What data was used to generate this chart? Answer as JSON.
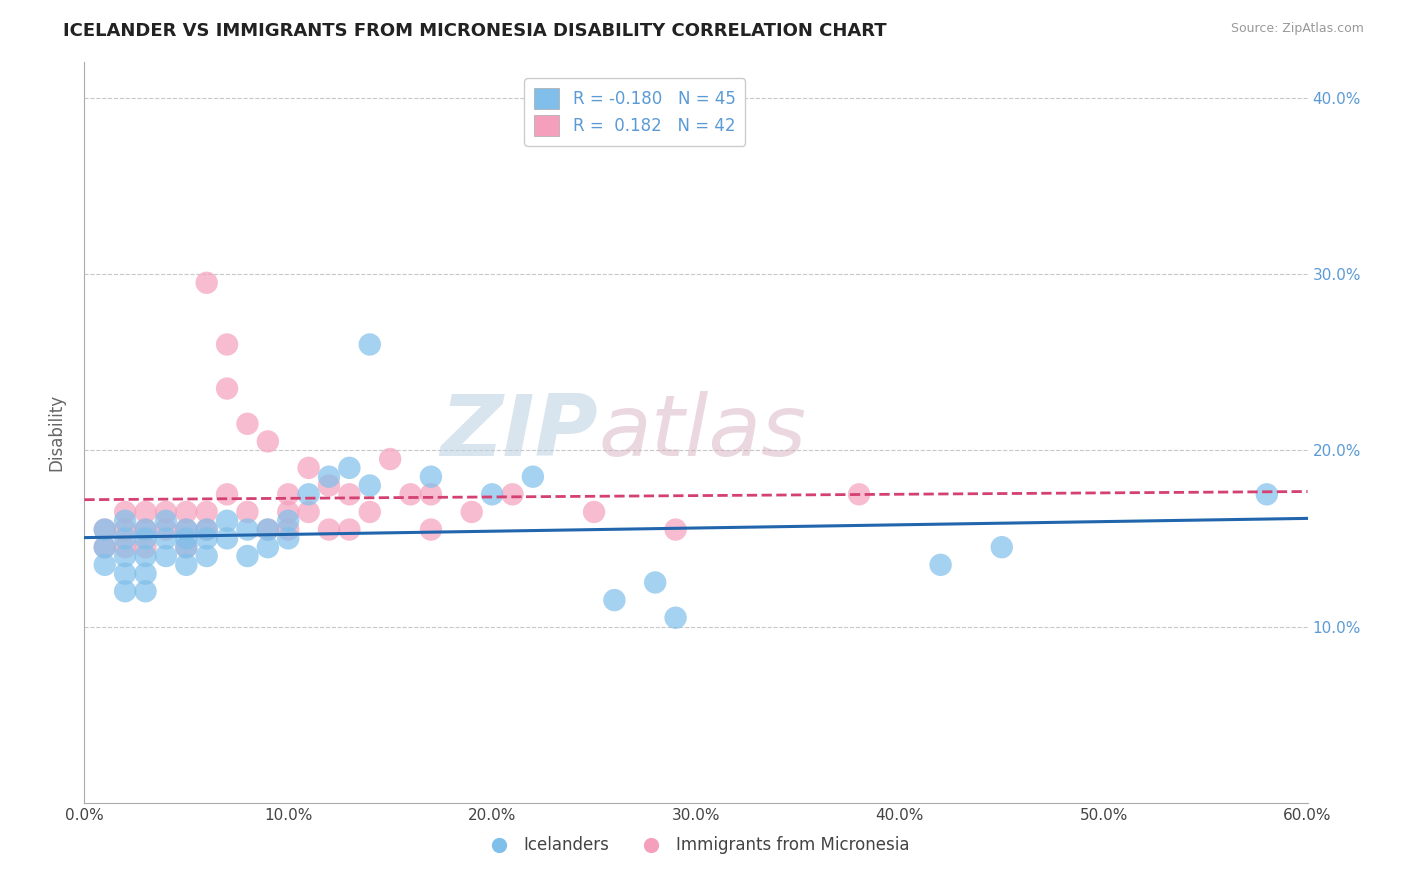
{
  "title": "ICELANDER VS IMMIGRANTS FROM MICRONESIA DISABILITY CORRELATION CHART",
  "source": "Source: ZipAtlas.com",
  "ylabel": "Disability",
  "watermark": "ZIPatlas",
  "legend_label1": "Icelanders",
  "legend_label2": "Immigrants from Micronesia",
  "r1": -0.18,
  "n1": 45,
  "r2": 0.182,
  "n2": 42,
  "color1": "#7fbfea",
  "color2": "#f4a0bc",
  "trendline_color1": "#2166ac",
  "trendline_color2": "#d44070",
  "xmin": 0.0,
  "xmax": 0.6,
  "ymin": 0.0,
  "ymax": 0.42,
  "yticks": [
    0.1,
    0.2,
    0.3,
    0.4
  ],
  "ytick_labels": [
    "10.0%",
    "20.0%",
    "30.0%",
    "40.0%"
  ],
  "xticks": [
    0.0,
    0.1,
    0.2,
    0.3,
    0.4,
    0.5,
    0.6
  ],
  "xtick_labels": [
    "0.0%",
    "10.0%",
    "20.0%",
    "30.0%",
    "40.0%",
    "50.0%",
    "60.0%"
  ],
  "gridline_y": [
    0.1,
    0.2,
    0.3,
    0.4
  ],
  "blue_dots_x": [
    0.01,
    0.01,
    0.01,
    0.02,
    0.02,
    0.02,
    0.02,
    0.02,
    0.03,
    0.03,
    0.03,
    0.03,
    0.03,
    0.04,
    0.04,
    0.04,
    0.05,
    0.05,
    0.05,
    0.05,
    0.06,
    0.06,
    0.06,
    0.07,
    0.07,
    0.08,
    0.08,
    0.09,
    0.09,
    0.1,
    0.1,
    0.11,
    0.12,
    0.13,
    0.14,
    0.17,
    0.2,
    0.22,
    0.26,
    0.28,
    0.29,
    0.42,
    0.45,
    0.58,
    0.14
  ],
  "blue_dots_y": [
    0.155,
    0.145,
    0.135,
    0.16,
    0.15,
    0.14,
    0.13,
    0.12,
    0.155,
    0.15,
    0.14,
    0.13,
    0.12,
    0.16,
    0.15,
    0.14,
    0.155,
    0.15,
    0.145,
    0.135,
    0.155,
    0.15,
    0.14,
    0.16,
    0.15,
    0.155,
    0.14,
    0.155,
    0.145,
    0.16,
    0.15,
    0.175,
    0.185,
    0.19,
    0.18,
    0.185,
    0.175,
    0.185,
    0.115,
    0.125,
    0.105,
    0.135,
    0.145,
    0.175,
    0.26
  ],
  "pink_dots_x": [
    0.01,
    0.01,
    0.02,
    0.02,
    0.02,
    0.03,
    0.03,
    0.03,
    0.04,
    0.04,
    0.05,
    0.05,
    0.05,
    0.06,
    0.06,
    0.06,
    0.07,
    0.07,
    0.07,
    0.08,
    0.08,
    0.09,
    0.09,
    0.1,
    0.1,
    0.1,
    0.11,
    0.11,
    0.12,
    0.12,
    0.13,
    0.13,
    0.14,
    0.15,
    0.16,
    0.17,
    0.17,
    0.19,
    0.21,
    0.25,
    0.29,
    0.38
  ],
  "pink_dots_y": [
    0.155,
    0.145,
    0.165,
    0.155,
    0.145,
    0.165,
    0.155,
    0.145,
    0.165,
    0.155,
    0.165,
    0.155,
    0.145,
    0.165,
    0.295,
    0.155,
    0.175,
    0.26,
    0.235,
    0.215,
    0.165,
    0.205,
    0.155,
    0.175,
    0.165,
    0.155,
    0.19,
    0.165,
    0.18,
    0.155,
    0.175,
    0.155,
    0.165,
    0.195,
    0.175,
    0.175,
    0.155,
    0.165,
    0.175,
    0.165,
    0.155,
    0.175
  ]
}
